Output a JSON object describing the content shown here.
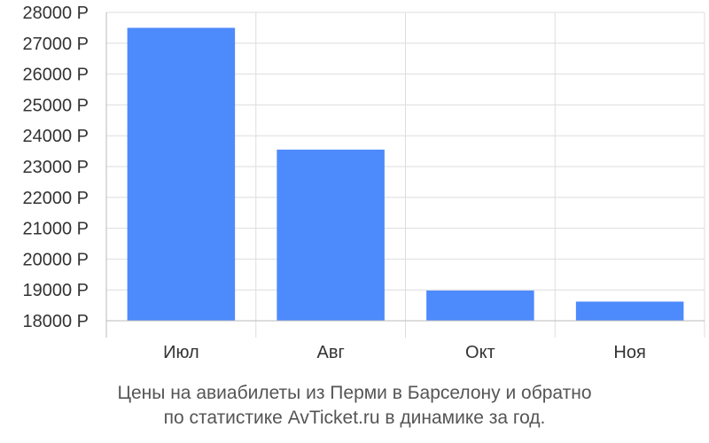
{
  "colors": {
    "bar": "#4d8afc",
    "grid": "#dddddd",
    "axis": "#bbbbbb"
  },
  "chart_data": {
    "type": "bar",
    "categories": [
      "Июл",
      "Авг",
      "Окт",
      "Ноя"
    ],
    "values": [
      27500,
      23550,
      18980,
      18620
    ],
    "ylim": [
      18000,
      28000
    ],
    "yticks": [
      18000,
      19000,
      20000,
      21000,
      22000,
      23000,
      24000,
      25000,
      26000,
      27000,
      28000
    ],
    "ytick_labels": [
      "18000 Р",
      "19000 Р",
      "20000 Р",
      "21000 Р",
      "22000 Р",
      "23000 Р",
      "24000 Р",
      "25000 Р",
      "26000 Р",
      "27000 Р",
      "28000 Р"
    ],
    "grid": true
  },
  "caption": {
    "line1": "Цены на авиабилеты из Перми в Барселону и обратно",
    "line2": "по статистике AvTicket.ru в динамике за год."
  }
}
